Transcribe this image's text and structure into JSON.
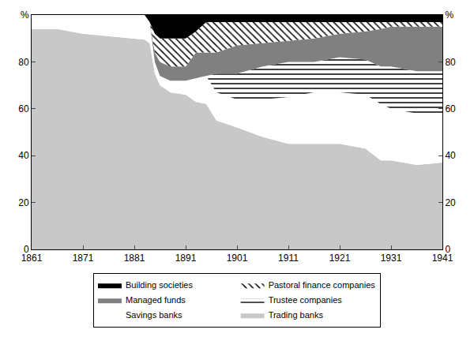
{
  "chart_data": {
    "type": "area",
    "stacked": true,
    "legend": "bottom",
    "x": [
      1861,
      1866,
      1871,
      1876,
      1881,
      1883,
      1884,
      1885,
      1886,
      1888,
      1891,
      1893,
      1895,
      1897,
      1901,
      1906,
      1911,
      1916,
      1921,
      1926,
      1929,
      1931,
      1936,
      1941
    ],
    "xlim": [
      1861,
      1941
    ],
    "xticks": [
      1861,
      1871,
      1881,
      1891,
      1901,
      1911,
      1921,
      1931,
      1941
    ],
    "ylim": [
      0,
      100
    ],
    "yticks": [
      0,
      20,
      40,
      60,
      80,
      {
        "value": 100,
        "label": "%"
      }
    ],
    "y2lim": [
      0,
      100
    ],
    "y2ticks": [
      0,
      20,
      40,
      60,
      80,
      {
        "value": 100,
        "label": "%"
      }
    ],
    "series": [
      {
        "name": "Trading banks",
        "color": "#c8c8c8",
        "values": [
          94,
          94,
          92,
          91,
          90,
          89.5,
          88,
          75,
          70,
          67,
          66,
          63,
          62,
          55,
          52,
          48,
          45,
          45,
          45,
          43,
          38,
          38,
          36,
          37
        ]
      },
      {
        "name": "Savings banks",
        "color": "#ffffff",
        "values": [
          6,
          6,
          8,
          9,
          10,
          10.5,
          9,
          5,
          4,
          5,
          6,
          10,
          12,
          12,
          12,
          16,
          20,
          22,
          22,
          23,
          24,
          22,
          22,
          20
        ]
      },
      {
        "name": "Trustee companies",
        "color": "#ffffff",
        "values": [
          0,
          0,
          0,
          0,
          0,
          0,
          0,
          0,
          0,
          0,
          0,
          0,
          0,
          8,
          11,
          14,
          15,
          13,
          15,
          15,
          16,
          18,
          18,
          19
        ]
      },
      {
        "name": "Managed funds",
        "color": "#808080",
        "values": [
          0,
          0,
          0,
          0,
          0,
          0,
          0,
          4,
          6,
          6,
          6,
          11,
          10,
          9,
          12,
          10,
          9,
          10,
          10,
          12,
          16,
          17,
          19,
          19
        ]
      },
      {
        "name": "Pastoral finance companies",
        "color": "#ffffff",
        "values": [
          0,
          0,
          0,
          0,
          0,
          0,
          0,
          8,
          10,
          12,
          12,
          9,
          13,
          13,
          10,
          9,
          8,
          7,
          5,
          4,
          3,
          2,
          2,
          2
        ]
      },
      {
        "name": "Building societies",
        "color": "#000000",
        "values": [
          0,
          0,
          0,
          0,
          0,
          0,
          3,
          8,
          10,
          10,
          10,
          7,
          3,
          3,
          3,
          3,
          3,
          3,
          3,
          3,
          3,
          3,
          3,
          3
        ]
      }
    ]
  }
}
